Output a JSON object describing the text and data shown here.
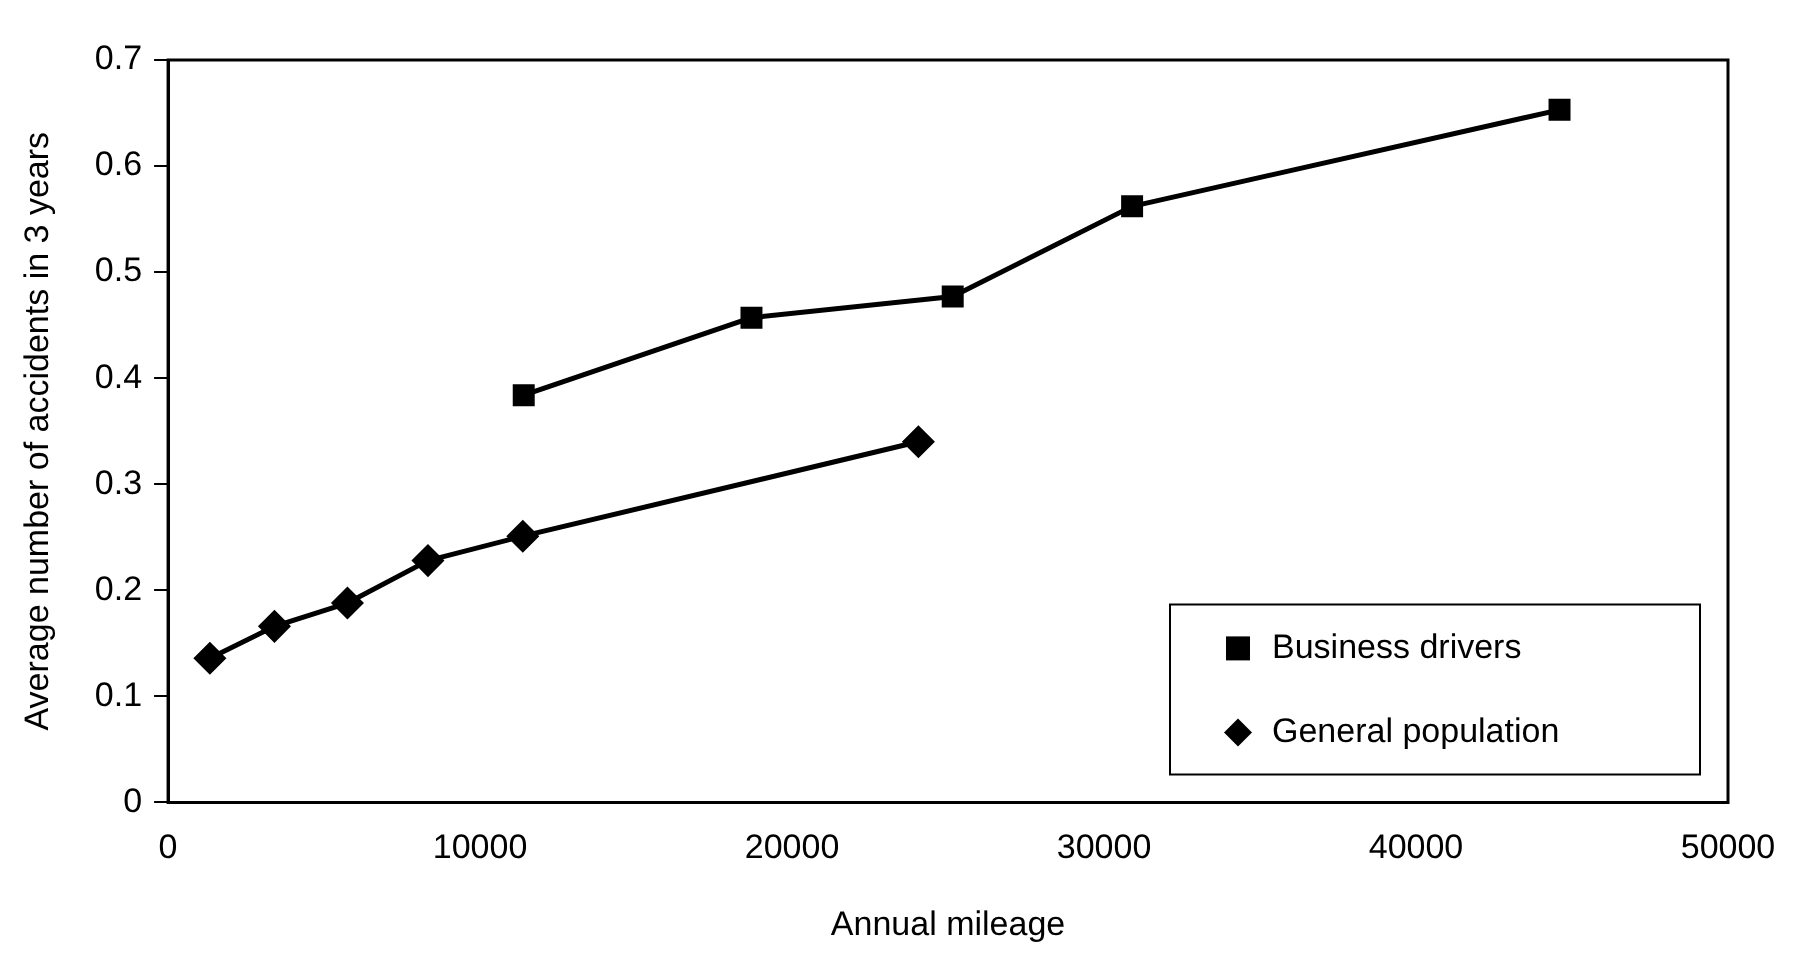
{
  "chart_data": {
    "type": "line",
    "xlabel": "Annual mileage",
    "ylabel": "Average number of accidents in 3 years",
    "xlim": [
      0,
      50000
    ],
    "xticks": [
      0,
      10000,
      20000,
      30000,
      40000,
      50000
    ],
    "ylim": [
      0,
      0.7
    ],
    "yticks": [
      0,
      0.1,
      0.2,
      0.3,
      0.4,
      0.5,
      0.6,
      0.7
    ],
    "grid": false,
    "legend": "bottom right",
    "series": [
      {
        "name": "Business drivers",
        "color": "#000000",
        "marker": "square",
        "x": [
          11400,
          18700,
          25150,
          30900,
          44600
        ],
        "values": [
          0.384,
          0.457,
          0.477,
          0.562,
          0.653
        ]
      },
      {
        "name": "General population",
        "color": "#000000",
        "marker": "diamond",
        "x": [
          1340,
          3410,
          5750,
          8330,
          11370,
          24050
        ],
        "values": [
          0.136,
          0.166,
          0.188,
          0.228,
          0.251,
          0.34
        ]
      }
    ]
  }
}
